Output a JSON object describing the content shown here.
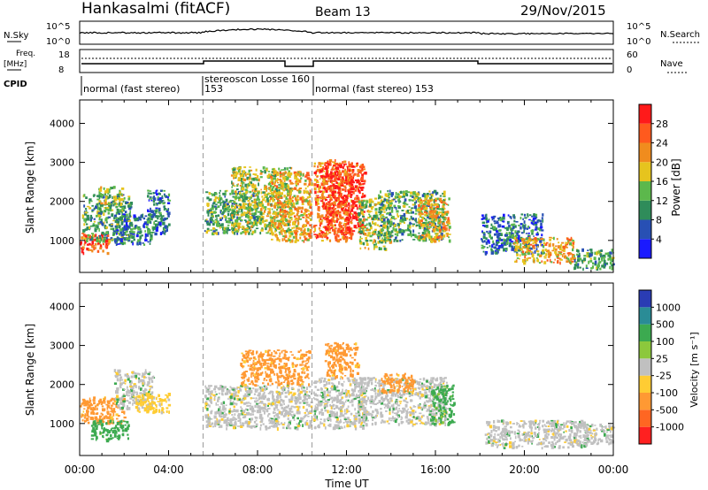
{
  "header": {
    "station": "Hankasalmi (fitACF)",
    "beam": "Beam 13",
    "date": "29/Nov/2015"
  },
  "panels": {
    "nsky_label": "N.Sky",
    "nsearch_label": "N.Search",
    "freq_label_1": "Freq.",
    "freq_label_2": "[MHz]",
    "nave_label": "Nave",
    "cpid_label": "CPID",
    "nsky_ticks": [
      "10^5",
      "10^0"
    ],
    "nsearch_ticks": [
      "10^5",
      "10^0"
    ],
    "freq_ticks": [
      "18",
      "8"
    ],
    "nave_ticks": [
      "60",
      "0"
    ]
  },
  "cpid_segments": [
    {
      "label": "normal (fast stereo)",
      "start_ut": 0.0,
      "end_ut": 5.55
    },
    {
      "label": "153",
      "start_ut": 5.55,
      "end_ut": 6.4
    },
    {
      "label": "stereoscon Losse 160",
      "start_ut": 5.55,
      "end_ut": 10.45
    },
    {
      "label": "normal (fast stereo) 153",
      "start_ut": 10.45,
      "end_ut": 24.0
    }
  ],
  "axes": {
    "xlabel": "Time UT",
    "ylabel": "Slant Range [km]",
    "xticks": [
      "00:00",
      "04:00",
      "08:00",
      "12:00",
      "16:00",
      "20:00",
      "00:00"
    ],
    "yticks": [
      "1000",
      "2000",
      "3000",
      "4000"
    ]
  },
  "colorbars": {
    "power": {
      "label": "Power [dB]",
      "ticks": [
        "4",
        "8",
        "12",
        "16",
        "20",
        "24",
        "28"
      ],
      "colors": [
        "#1a1aff",
        "#2850b4",
        "#2f8c5a",
        "#5cb84c",
        "#e6c41e",
        "#f08c1e",
        "#ff5a1e",
        "#ff1a1a"
      ]
    },
    "velocity": {
      "label": "Velocity [m s⁻¹]",
      "ticks": [
        "1000",
        "500",
        "100",
        "25",
        "-25",
        "-100",
        "-500",
        "-1000"
      ],
      "colors": [
        "#2a3cb4",
        "#2a8c96",
        "#3caa50",
        "#8cc83c",
        "#c0c0c0",
        "#ffcc33",
        "#ff9933",
        "#ff6622",
        "#ff2020"
      ]
    }
  },
  "chart_data": [
    {
      "type": "heatmap",
      "title": "Power",
      "x_range_ut": [
        0,
        24
      ],
      "y_range_km": [
        180,
        4600
      ],
      "colorbar_label": "Power [dB]",
      "vertical_markers_ut": [
        5.55,
        10.45
      ],
      "blobs": [
        {
          "t0": 0.0,
          "t1": 1.3,
          "r0": 700,
          "r1": 1200,
          "level": 28
        },
        {
          "t0": 0.1,
          "t1": 2.3,
          "r0": 1000,
          "r1": 2200,
          "level": 12
        },
        {
          "t0": 0.8,
          "t1": 1.9,
          "r0": 1900,
          "r1": 2400,
          "level": 16
        },
        {
          "t0": 1.5,
          "t1": 3.2,
          "r0": 900,
          "r1": 1700,
          "level": 8
        },
        {
          "t0": 3.0,
          "t1": 4.0,
          "r0": 1200,
          "r1": 2300,
          "level": 8
        },
        {
          "t0": 5.6,
          "t1": 8.0,
          "r0": 1200,
          "r1": 2300,
          "level": 12
        },
        {
          "t0": 6.8,
          "t1": 9.5,
          "r0": 1200,
          "r1": 2900,
          "level": 16
        },
        {
          "t0": 8.5,
          "t1": 10.4,
          "r0": 1000,
          "r1": 2800,
          "level": 20
        },
        {
          "t0": 10.5,
          "t1": 12.2,
          "r0": 1000,
          "r1": 3100,
          "level": 24
        },
        {
          "t0": 11.0,
          "t1": 12.8,
          "r0": 1200,
          "r1": 3000,
          "level": 28
        },
        {
          "t0": 12.5,
          "t1": 14.0,
          "r0": 800,
          "r1": 2100,
          "level": 16
        },
        {
          "t0": 13.4,
          "t1": 16.4,
          "r0": 1000,
          "r1": 2300,
          "level": 12
        },
        {
          "t0": 15.2,
          "t1": 16.6,
          "r0": 1000,
          "r1": 2100,
          "level": 20
        },
        {
          "t0": 18.0,
          "t1": 20.8,
          "r0": 700,
          "r1": 1700,
          "level": 8
        },
        {
          "t0": 19.5,
          "t1": 22.2,
          "r0": 450,
          "r1": 1100,
          "level": 20
        },
        {
          "t0": 22.2,
          "t1": 24.0,
          "r0": 300,
          "r1": 800,
          "level": 12
        }
      ]
    },
    {
      "type": "heatmap",
      "title": "Velocity",
      "x_range_ut": [
        0,
        24
      ],
      "y_range_km": [
        180,
        4600
      ],
      "colorbar_label": "Velocity [m s⁻¹]",
      "vertical_markers_ut": [
        5.55,
        10.45
      ],
      "blobs": [
        {
          "t0": 0.0,
          "t1": 2.0,
          "r0": 1000,
          "r1": 1700,
          "level": -500
        },
        {
          "t0": 0.5,
          "t1": 2.2,
          "r0": 600,
          "r1": 1100,
          "level": 100
        },
        {
          "t0": 1.5,
          "t1": 3.3,
          "r0": 1400,
          "r1": 2400,
          "level": 0
        },
        {
          "t0": 2.5,
          "t1": 4.0,
          "r0": 1300,
          "r1": 1800,
          "level": -100
        },
        {
          "t0": 5.6,
          "t1": 8.5,
          "r0": 900,
          "r1": 2000,
          "level": 0
        },
        {
          "t0": 7.2,
          "t1": 10.3,
          "r0": 2000,
          "r1": 2900,
          "level": -500
        },
        {
          "t0": 8.5,
          "t1": 10.4,
          "r0": 900,
          "r1": 2000,
          "level": 0
        },
        {
          "t0": 10.5,
          "t1": 12.8,
          "r0": 900,
          "r1": 2200,
          "level": 0
        },
        {
          "t0": 11.0,
          "t1": 12.5,
          "r0": 2200,
          "r1": 3100,
          "level": -500
        },
        {
          "t0": 12.5,
          "t1": 16.5,
          "r0": 1000,
          "r1": 2200,
          "level": 0
        },
        {
          "t0": 13.5,
          "t1": 15.0,
          "r0": 1800,
          "r1": 2300,
          "level": -500
        },
        {
          "t0": 15.8,
          "t1": 16.8,
          "r0": 1000,
          "r1": 2000,
          "level": 100
        },
        {
          "t0": 18.2,
          "t1": 22.8,
          "r0": 400,
          "r1": 1100,
          "level": 0
        },
        {
          "t0": 22.5,
          "t1": 24.0,
          "r0": 500,
          "r1": 1000,
          "level": 0
        }
      ]
    }
  ]
}
